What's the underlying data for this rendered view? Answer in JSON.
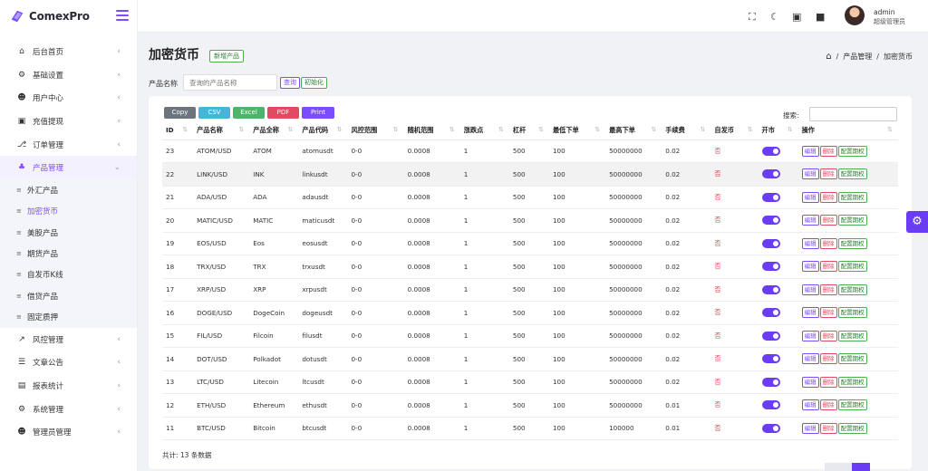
{
  "app": {
    "logo_text": "ComexPro"
  },
  "colors": {
    "accent": "#7c4dff",
    "toggle": "#6a3cf4",
    "success": "#4caf50",
    "danger": "#e04b61"
  },
  "sidebar": {
    "items": [
      {
        "label": "后台首页",
        "icon": "home-icon"
      },
      {
        "label": "基础设置",
        "icon": "settings-icon"
      },
      {
        "label": "用户中心",
        "icon": "users-icon"
      },
      {
        "label": "充值提现",
        "icon": "cash-icon"
      },
      {
        "label": "订单管理",
        "icon": "cart-icon"
      },
      {
        "label": "产品管理",
        "icon": "products-icon"
      }
    ],
    "sub_items": [
      "外汇产品",
      "加密货币",
      "美股产品",
      "期货产品",
      "自发币K线",
      "借贷产品",
      "固定质押"
    ],
    "items_after": [
      {
        "label": "风控管理",
        "icon": "chart-icon"
      },
      {
        "label": "文章公告",
        "icon": "layers-icon"
      },
      {
        "label": "报表统计",
        "icon": "report-icon"
      },
      {
        "label": "系统管理",
        "icon": "gear-icon"
      },
      {
        "label": "管理员管理",
        "icon": "admins-icon"
      }
    ]
  },
  "topbar": {
    "user_name": "admin",
    "user_role": "超级管理员"
  },
  "page": {
    "title": "加密货币",
    "add_label": "新增产品",
    "breadcrumb": [
      "产品管理",
      "加密货币"
    ],
    "search_label": "产品名称",
    "search_placeholder": "查询的产品名称",
    "query_label": "查询",
    "reset_label": "初始化"
  },
  "table_tools": {
    "exports": [
      "Copy",
      "CSV",
      "Excel",
      "PDF",
      "Print"
    ],
    "search_label": "搜索:"
  },
  "table": {
    "headers": [
      "ID",
      "产品名称",
      "产品全称",
      "产品代码",
      "风控范围",
      "随机范围",
      "涨跌点",
      "杠杆",
      "最低下单",
      "最高下单",
      "手续费",
      "自发币",
      "开市",
      "操作"
    ],
    "actions": [
      "编辑",
      "删除",
      "配置期权"
    ],
    "rows": [
      [
        "23",
        "ATOM/USD",
        "ATOM",
        "atomusdt",
        "0-0",
        "0.0008",
        "1",
        "500",
        "100",
        "50000000",
        "0.02",
        "否"
      ],
      [
        "22",
        "LINK/USD",
        "INK",
        "linkusdt",
        "0-0",
        "0.0008",
        "1",
        "500",
        "100",
        "50000000",
        "0.02",
        "否"
      ],
      [
        "21",
        "ADA/USD",
        "ADA",
        "adausdt",
        "0-0",
        "0.0008",
        "1",
        "500",
        "100",
        "50000000",
        "0.02",
        "否"
      ],
      [
        "20",
        "MATIC/USD",
        "MATIC",
        "maticusdt",
        "0-0",
        "0.0008",
        "1",
        "500",
        "100",
        "50000000",
        "0.02",
        "否"
      ],
      [
        "19",
        "EOS/USD",
        "Eos",
        "eosusdt",
        "0-0",
        "0.0008",
        "1",
        "500",
        "100",
        "50000000",
        "0.02",
        "否"
      ],
      [
        "18",
        "TRX/USD",
        "TRX",
        "trxusdt",
        "0-0",
        "0.0008",
        "1",
        "500",
        "100",
        "50000000",
        "0.02",
        "否"
      ],
      [
        "17",
        "XRP/USD",
        "XRP",
        "xrpusdt",
        "0-0",
        "0.0008",
        "1",
        "500",
        "100",
        "50000000",
        "0.02",
        "否"
      ],
      [
        "16",
        "DOGE/USD",
        "DogeCoin",
        "dogeusdt",
        "0-0",
        "0.0008",
        "1",
        "500",
        "100",
        "50000000",
        "0.02",
        "否"
      ],
      [
        "15",
        "FIL/USD",
        "Filcoin",
        "filusdt",
        "0-0",
        "0.0008",
        "1",
        "500",
        "100",
        "50000000",
        "0.02",
        "否"
      ],
      [
        "14",
        "DOT/USD",
        "Polkadot",
        "dotusdt",
        "0-0",
        "0.0008",
        "1",
        "500",
        "100",
        "50000000",
        "0.02",
        "否"
      ],
      [
        "13",
        "LTC/USD",
        "Litecoin",
        "ltcusdt",
        "0-0",
        "0.0008",
        "1",
        "500",
        "100",
        "50000000",
        "0.02",
        "否"
      ],
      [
        "12",
        "ETH/USD",
        "Ethereum",
        "ethusdt",
        "0-0",
        "0.0008",
        "1",
        "500",
        "100",
        "50000000",
        "0.01",
        "否"
      ],
      [
        "11",
        "BTC/USD",
        "Bitcoin",
        "btcusdt",
        "0-0",
        "0.0008",
        "1",
        "500",
        "100",
        "100000",
        "0.01",
        "否"
      ]
    ],
    "footer": "共计: 13 条数据"
  }
}
